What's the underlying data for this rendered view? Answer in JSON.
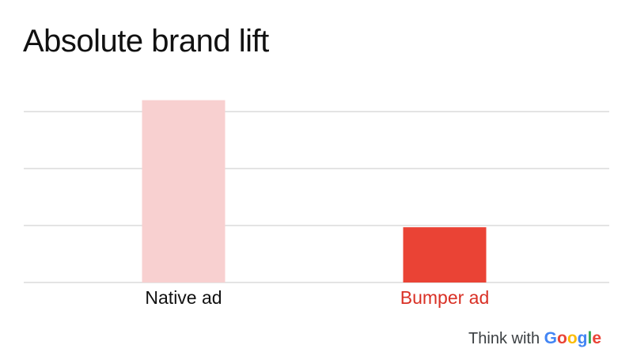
{
  "title": "Absolute brand lift",
  "brand": {
    "prefix": "Think with",
    "google_letters": [
      {
        "ch": "G",
        "color": "#4285F4"
      },
      {
        "ch": "o",
        "color": "#EA4335"
      },
      {
        "ch": "o",
        "color": "#FBBC05"
      },
      {
        "ch": "g",
        "color": "#4285F4"
      },
      {
        "ch": "l",
        "color": "#34A853"
      },
      {
        "ch": "e",
        "color": "#EA4335"
      }
    ]
  },
  "chart_data": {
    "type": "bar",
    "title": "Absolute brand lift",
    "categories": [
      "Native ad",
      "Bumper ad"
    ],
    "values": [
      3.2,
      0.97
    ],
    "colors": [
      "#f8d0d0",
      "#ea4335"
    ],
    "label_colors": [
      "#111111",
      "#d93025"
    ],
    "ylim": [
      0,
      3
    ],
    "gridlines": [
      0,
      1,
      2,
      3
    ],
    "grid": true,
    "show_y_tick_labels": false
  }
}
